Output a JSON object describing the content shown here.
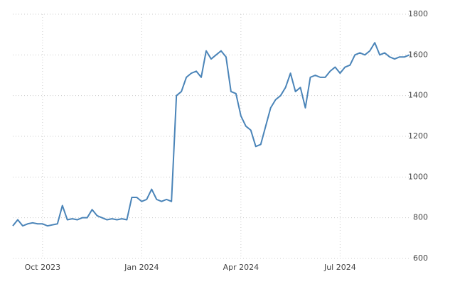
{
  "chart_data": {
    "type": "line",
    "categories": [
      null,
      null,
      null,
      null,
      null,
      null,
      "Oct 2023",
      null,
      null,
      null,
      null,
      null,
      null,
      null,
      null,
      null,
      null,
      null,
      null,
      null,
      null,
      null,
      null,
      null,
      null,
      null,
      "Jan 2024",
      null,
      null,
      null,
      null,
      null,
      null,
      null,
      null,
      null,
      null,
      null,
      null,
      null,
      null,
      null,
      null,
      null,
      null,
      null,
      "Apr 2024",
      null,
      null,
      null,
      null,
      null,
      null,
      null,
      null,
      null,
      null,
      null,
      null,
      null,
      null,
      null,
      null,
      null,
      null,
      null,
      "Jul 2024",
      null,
      null,
      null,
      null,
      null,
      null,
      null,
      null,
      null,
      null,
      null,
      null,
      null,
      null
    ],
    "values": [
      760,
      790,
      760,
      770,
      775,
      770,
      770,
      760,
      765,
      770,
      860,
      790,
      795,
      790,
      800,
      800,
      840,
      810,
      800,
      790,
      795,
      790,
      795,
      790,
      900,
      900,
      880,
      890,
      940,
      890,
      880,
      890,
      880,
      1400,
      1420,
      1490,
      1510,
      1520,
      1490,
      1620,
      1580,
      1600,
      1620,
      1590,
      1420,
      1410,
      1300,
      1250,
      1230,
      1150,
      1160,
      1250,
      1340,
      1380,
      1400,
      1440,
      1510,
      1420,
      1440,
      1340,
      1490,
      1500,
      1490,
      1490,
      1520,
      1540,
      1510,
      1540,
      1550,
      1600,
      1610,
      1600,
      1620,
      1660,
      1600,
      1610,
      1590,
      1580,
      1590,
      1590,
      1600
    ],
    "color": "#4a84b8",
    "ylim": [
      600,
      1800
    ],
    "yticks": [
      600,
      800,
      1000,
      1200,
      1400,
      1600,
      1800
    ],
    "grid": true
  }
}
